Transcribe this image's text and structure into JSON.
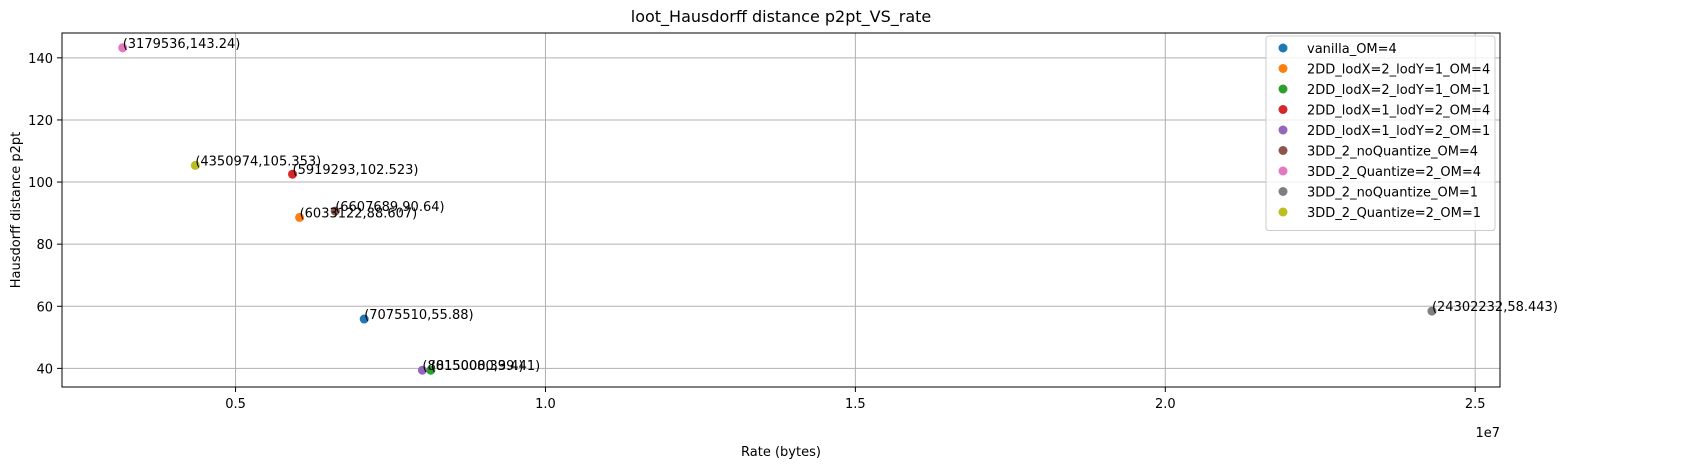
{
  "chart_data": {
    "type": "scatter",
    "title": "loot_Hausdorff distance p2pt_VS_rate",
    "xlabel": "Rate (bytes)",
    "ylabel": "Hausdorff distance p2pt",
    "x_offset_label": "1e7",
    "xlim": [
      2200000,
      25400000
    ],
    "ylim": [
      34,
      148
    ],
    "x_ticks": [
      {
        "value": 5000000,
        "label": "0.5"
      },
      {
        "value": 10000000,
        "label": "1.0"
      },
      {
        "value": 15000000,
        "label": "1.5"
      },
      {
        "value": 20000000,
        "label": "2.0"
      },
      {
        "value": 25000000,
        "label": "2.5"
      }
    ],
    "y_ticks": [
      {
        "value": 40,
        "label": "40"
      },
      {
        "value": 60,
        "label": "60"
      },
      {
        "value": 80,
        "label": "80"
      },
      {
        "value": 100,
        "label": "100"
      },
      {
        "value": 120,
        "label": "120"
      },
      {
        "value": 140,
        "label": "140"
      }
    ],
    "grid": true,
    "legend_position": "top-right",
    "series": [
      {
        "name": "vanilla_OM=4",
        "color": "#1f77b4",
        "points": [
          {
            "x": 7075510,
            "y": 55.88,
            "label": "(7075510,55.88)"
          }
        ]
      },
      {
        "name": "2DD_lodX=2_lodY=1_OM=4",
        "color": "#ff7f0e",
        "points": [
          {
            "x": 6033122,
            "y": 88.607,
            "label": "(6033122,88.607)"
          }
        ]
      },
      {
        "name": "2DD_lodX=2_lodY=1_OM=1",
        "color": "#2ca02c",
        "points": [
          {
            "x": 8150000,
            "y": 39.41,
            "label": "(8150000,39.41)"
          }
        ]
      },
      {
        "name": "2DD_lodX=1_lodY=2_OM=4",
        "color": "#d62728",
        "points": [
          {
            "x": 5919293,
            "y": 102.523,
            "label": "(5919293,102.523)"
          }
        ]
      },
      {
        "name": "2DD_lodX=1_lodY=2_OM=1",
        "color": "#9467bd",
        "points": [
          {
            "x": 8015008,
            "y": 39.4,
            "label": "(8015008,39.4)"
          }
        ]
      },
      {
        "name": "3DD_2_noQuantize_OM=4",
        "color": "#8c564b",
        "points": [
          {
            "x": 6607689,
            "y": 90.64,
            "label": "(6607689,90.64)"
          }
        ]
      },
      {
        "name": "3DD_2_Quantize=2_OM=4",
        "color": "#e377c2",
        "points": [
          {
            "x": 3179536,
            "y": 143.24,
            "label": "(3179536,143.24)"
          }
        ]
      },
      {
        "name": "3DD_2_noQuantize_OM=1",
        "color": "#7f7f7f",
        "points": [
          {
            "x": 24302232,
            "y": 58.443,
            "label": "(24302232,58.443)"
          }
        ]
      },
      {
        "name": "3DD_2_Quantize=2_OM=1",
        "color": "#bcbd22",
        "points": [
          {
            "x": 4350974,
            "y": 105.353,
            "label": "(4350974,105.353)"
          }
        ]
      }
    ]
  }
}
